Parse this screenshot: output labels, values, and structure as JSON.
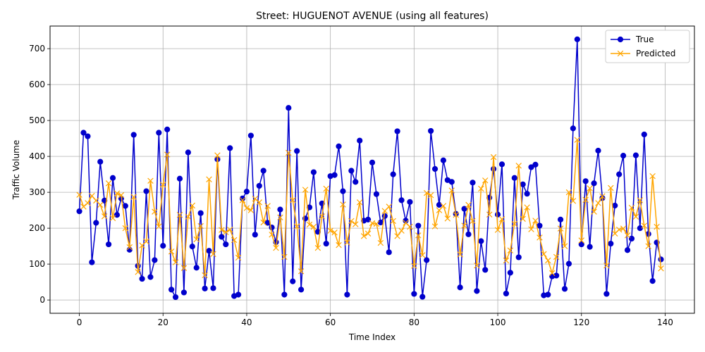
{
  "chart_data": {
    "type": "line",
    "title": "Street: HUGUENOT AVENUE (using all features)",
    "xlabel": "Time Index",
    "ylabel": "Traffic Volume",
    "xlim": [
      -7,
      147
    ],
    "ylim": [
      -37,
      763
    ],
    "xticks": [
      0,
      20,
      40,
      60,
      80,
      100,
      120,
      140
    ],
    "yticks": [
      0,
      100,
      200,
      300,
      400,
      500,
      600,
      700
    ],
    "grid": true,
    "legend_position": "top-right",
    "x": [
      0,
      1,
      2,
      3,
      4,
      5,
      6,
      7,
      8,
      9,
      10,
      11,
      12,
      13,
      14,
      15,
      16,
      17,
      18,
      19,
      20,
      21,
      22,
      23,
      24,
      25,
      26,
      27,
      28,
      29,
      30,
      31,
      32,
      33,
      34,
      35,
      36,
      37,
      38,
      39,
      40,
      41,
      42,
      43,
      44,
      45,
      46,
      47,
      48,
      49,
      50,
      51,
      52,
      53,
      54,
      55,
      56,
      57,
      58,
      59,
      60,
      61,
      62,
      63,
      64,
      65,
      66,
      67,
      68,
      69,
      70,
      71,
      72,
      73,
      74,
      75,
      76,
      77,
      78,
      79,
      80,
      81,
      82,
      83,
      84,
      85,
      86,
      87,
      88,
      89,
      90,
      91,
      92,
      93,
      94,
      95,
      96,
      97,
      98,
      99,
      100,
      101,
      102,
      103,
      104,
      105,
      106,
      107,
      108,
      109,
      110,
      111,
      112,
      113,
      114,
      115,
      116,
      117,
      118,
      119,
      120,
      121,
      122,
      123,
      124,
      125,
      126,
      127,
      128,
      129,
      130,
      131,
      132,
      133,
      134,
      135,
      136,
      137,
      138,
      139
    ],
    "series": [
      {
        "name": "True",
        "color": "#0000cc",
        "marker": "circle",
        "values": [
          247,
          466,
          456,
          105,
          215,
          385,
          277,
          155,
          340,
          237,
          283,
          262,
          140,
          460,
          95,
          59,
          303,
          64,
          111,
          466,
          151,
          475,
          29,
          8,
          338,
          21,
          411,
          149,
          90,
          242,
          32,
          137,
          33,
          392,
          176,
          155,
          423,
          11,
          15,
          283,
          302,
          458,
          182,
          318,
          360,
          215,
          202,
          161,
          252,
          15,
          535,
          52,
          415,
          29,
          227,
          258,
          356,
          190,
          269,
          157,
          345,
          348,
          428,
          303,
          15,
          360,
          329,
          444,
          221,
          224,
          383,
          295,
          216,
          234,
          133,
          350,
          470,
          278,
          221,
          273,
          17,
          207,
          9,
          111,
          471,
          365,
          265,
          389,
          334,
          329,
          240,
          35,
          254,
          183,
          327,
          25,
          164,
          84,
          285,
          365,
          238,
          378,
          18,
          76,
          340,
          119,
          322,
          296,
          370,
          377,
          207,
          13,
          15,
          66,
          68,
          224,
          31,
          101,
          478,
          726,
          155,
          331,
          148,
          325,
          416,
          284,
          17,
          157,
          263,
          350,
          402,
          139,
          171,
          403,
          200,
          461,
          184,
          53,
          160,
          113
        ]
      },
      {
        "name": "Predicted",
        "color": "#ffa500",
        "marker": "x",
        "values": [
          293,
          260,
          270,
          290,
          277,
          265,
          233,
          325,
          228,
          297,
          292,
          200,
          147,
          287,
          78,
          152,
          163,
          332,
          246,
          205,
          321,
          405,
          135,
          105,
          237,
          89,
          232,
          263,
          169,
          206,
          69,
          336,
          128,
          403,
          195,
          189,
          196,
          167,
          118,
          278,
          256,
          250,
          282,
          272,
          216,
          262,
          182,
          145,
          230,
          120,
          410,
          278,
          205,
          80,
          307,
          210,
          204,
          145,
          233,
          310,
          193,
          188,
          153,
          266,
          160,
          220,
          211,
          272,
          178,
          185,
          214,
          212,
          159,
          248,
          260,
          220,
          178,
          193,
          215,
          204,
          95,
          180,
          125,
          298,
          292,
          205,
          250,
          262,
          227,
          305,
          237,
          127,
          207,
          265,
          220,
          96,
          310,
          333,
          238,
          398,
          195,
          225,
          110,
          138,
          212,
          374,
          226,
          258,
          197,
          221,
          174,
          128,
          110,
          75,
          120,
          199,
          150,
          300,
          276,
          446,
          166,
          279,
          311,
          246,
          270,
          289,
          96,
          312,
          185,
          196,
          199,
          180,
          257,
          232,
          278,
          207,
          150,
          345,
          204,
          88
        ]
      }
    ]
  }
}
